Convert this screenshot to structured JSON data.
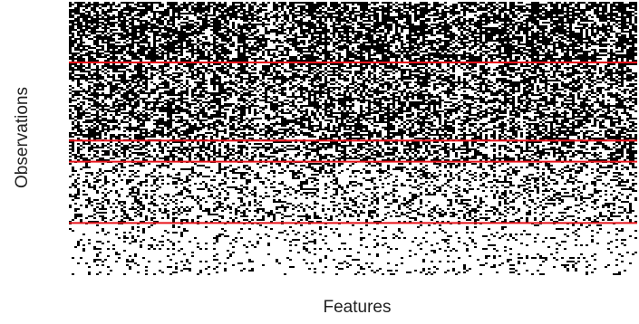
{
  "chart_data": {
    "type": "heatmap",
    "title": "",
    "xlabel": "Features",
    "ylabel": "Observations",
    "values": "binary (black = 1, white = 0)",
    "colors": {
      "one": "#000000",
      "zero": "#ffffff",
      "separator": "#e8141c"
    },
    "groups": [
      {
        "fill_density": 0.65
      },
      {
        "fill_density": 0.55
      },
      {
        "fill_density": 0.5
      },
      {
        "fill_density": 0.3
      },
      {
        "fill_density": 0.12
      }
    ],
    "group_boundaries": [
      0.222,
      0.508,
      0.585,
      0.809
    ],
    "grid": false,
    "legend": "none"
  }
}
